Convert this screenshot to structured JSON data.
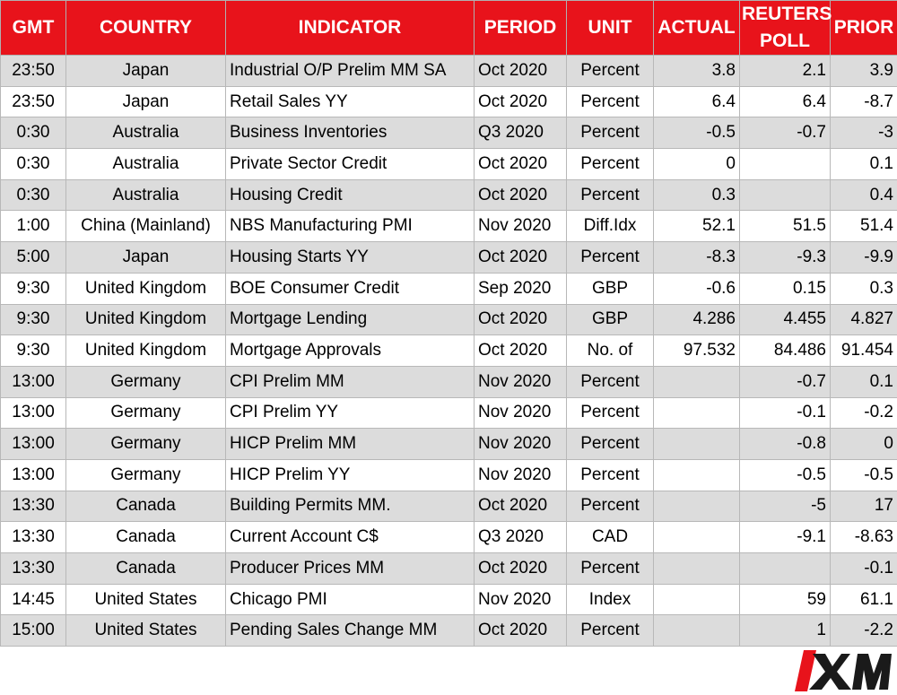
{
  "headers": {
    "gmt": "GMT",
    "country": "COUNTRY",
    "indicator": "INDICATOR",
    "period": "PERIOD",
    "unit": "UNIT",
    "actual": "ACTUAL",
    "poll": "REUTERS\nPOLL",
    "prior": "PRIOR"
  },
  "rows": [
    {
      "gmt": "23:50",
      "country": "Japan",
      "indicator": "Industrial O/P Prelim MM SA",
      "period": "Oct 2020",
      "unit": "Percent",
      "actual": "3.8",
      "poll": "2.1",
      "prior": "3.9"
    },
    {
      "gmt": "23:50",
      "country": "Japan",
      "indicator": "Retail Sales YY",
      "period": "Oct 2020",
      "unit": "Percent",
      "actual": "6.4",
      "poll": "6.4",
      "prior": "-8.7"
    },
    {
      "gmt": "0:30",
      "country": "Australia",
      "indicator": "Business Inventories",
      "period": "Q3 2020",
      "unit": "Percent",
      "actual": "-0.5",
      "poll": "-0.7",
      "prior": "-3"
    },
    {
      "gmt": "0:30",
      "country": "Australia",
      "indicator": "Private Sector Credit",
      "period": "Oct 2020",
      "unit": "Percent",
      "actual": "0",
      "poll": "",
      "prior": "0.1"
    },
    {
      "gmt": "0:30",
      "country": "Australia",
      "indicator": "Housing Credit",
      "period": "Oct 2020",
      "unit": "Percent",
      "actual": "0.3",
      "poll": "",
      "prior": "0.4"
    },
    {
      "gmt": "1:00",
      "country": "China (Mainland)",
      "indicator": "NBS Manufacturing PMI",
      "period": "Nov 2020",
      "unit": "Diff.Idx",
      "actual": "52.1",
      "poll": "51.5",
      "prior": "51.4"
    },
    {
      "gmt": "5:00",
      "country": "Japan",
      "indicator": "Housing Starts YY",
      "period": "Oct 2020",
      "unit": "Percent",
      "actual": "-8.3",
      "poll": "-9.3",
      "prior": "-9.9"
    },
    {
      "gmt": "9:30",
      "country": "United Kingdom",
      "indicator": "BOE Consumer Credit",
      "period": "Sep 2020",
      "unit": "GBP",
      "actual": "-0.6",
      "poll": "0.15",
      "prior": "0.3"
    },
    {
      "gmt": "9:30",
      "country": "United Kingdom",
      "indicator": "Mortgage Lending",
      "period": "Oct 2020",
      "unit": "GBP",
      "actual": "4.286",
      "poll": "4.455",
      "prior": "4.827"
    },
    {
      "gmt": "9:30",
      "country": "United Kingdom",
      "indicator": "Mortgage Approvals",
      "period": "Oct 2020",
      "unit": "No. of",
      "actual": "97.532",
      "poll": "84.486",
      "prior": "91.454"
    },
    {
      "gmt": "13:00",
      "country": "Germany",
      "indicator": "CPI Prelim MM",
      "period": "Nov 2020",
      "unit": "Percent",
      "actual": "",
      "poll": "-0.7",
      "prior": "0.1"
    },
    {
      "gmt": "13:00",
      "country": "Germany",
      "indicator": "CPI Prelim YY",
      "period": "Nov 2020",
      "unit": "Percent",
      "actual": "",
      "poll": "-0.1",
      "prior": "-0.2"
    },
    {
      "gmt": "13:00",
      "country": "Germany",
      "indicator": "HICP Prelim MM",
      "period": "Nov 2020",
      "unit": "Percent",
      "actual": "",
      "poll": "-0.8",
      "prior": "0"
    },
    {
      "gmt": "13:00",
      "country": "Germany",
      "indicator": "HICP Prelim YY",
      "period": "Nov 2020",
      "unit": "Percent",
      "actual": "",
      "poll": "-0.5",
      "prior": "-0.5"
    },
    {
      "gmt": "13:30",
      "country": "Canada",
      "indicator": "Building Permits MM.",
      "period": "Oct 2020",
      "unit": "Percent",
      "actual": "",
      "poll": "-5",
      "prior": "17"
    },
    {
      "gmt": "13:30",
      "country": "Canada",
      "indicator": "Current Account C$",
      "period": "Q3 2020",
      "unit": "CAD",
      "actual": "",
      "poll": "-9.1",
      "prior": "-8.63"
    },
    {
      "gmt": "13:30",
      "country": "Canada",
      "indicator": "Producer Prices MM",
      "period": "Oct 2020",
      "unit": "Percent",
      "actual": "",
      "poll": "",
      "prior": "-0.1"
    },
    {
      "gmt": "14:45",
      "country": "United States",
      "indicator": "Chicago PMI",
      "period": "Nov 2020",
      "unit": "Index",
      "actual": "",
      "poll": "59",
      "prior": "61.1"
    },
    {
      "gmt": "15:00",
      "country": "United States",
      "indicator": "Pending Sales Change MM",
      "period": "Oct 2020",
      "unit": "Percent",
      "actual": "",
      "poll": "1",
      "prior": "-2.2"
    }
  ],
  "logo": {
    "text": "XM",
    "icon": "xm-logo-icon",
    "color": "#e8131b"
  },
  "colors": {
    "header_bg": "#e8131b",
    "header_text": "#ffffff",
    "row_shaded": "#dcdcdc",
    "row_plain": "#ffffff"
  }
}
